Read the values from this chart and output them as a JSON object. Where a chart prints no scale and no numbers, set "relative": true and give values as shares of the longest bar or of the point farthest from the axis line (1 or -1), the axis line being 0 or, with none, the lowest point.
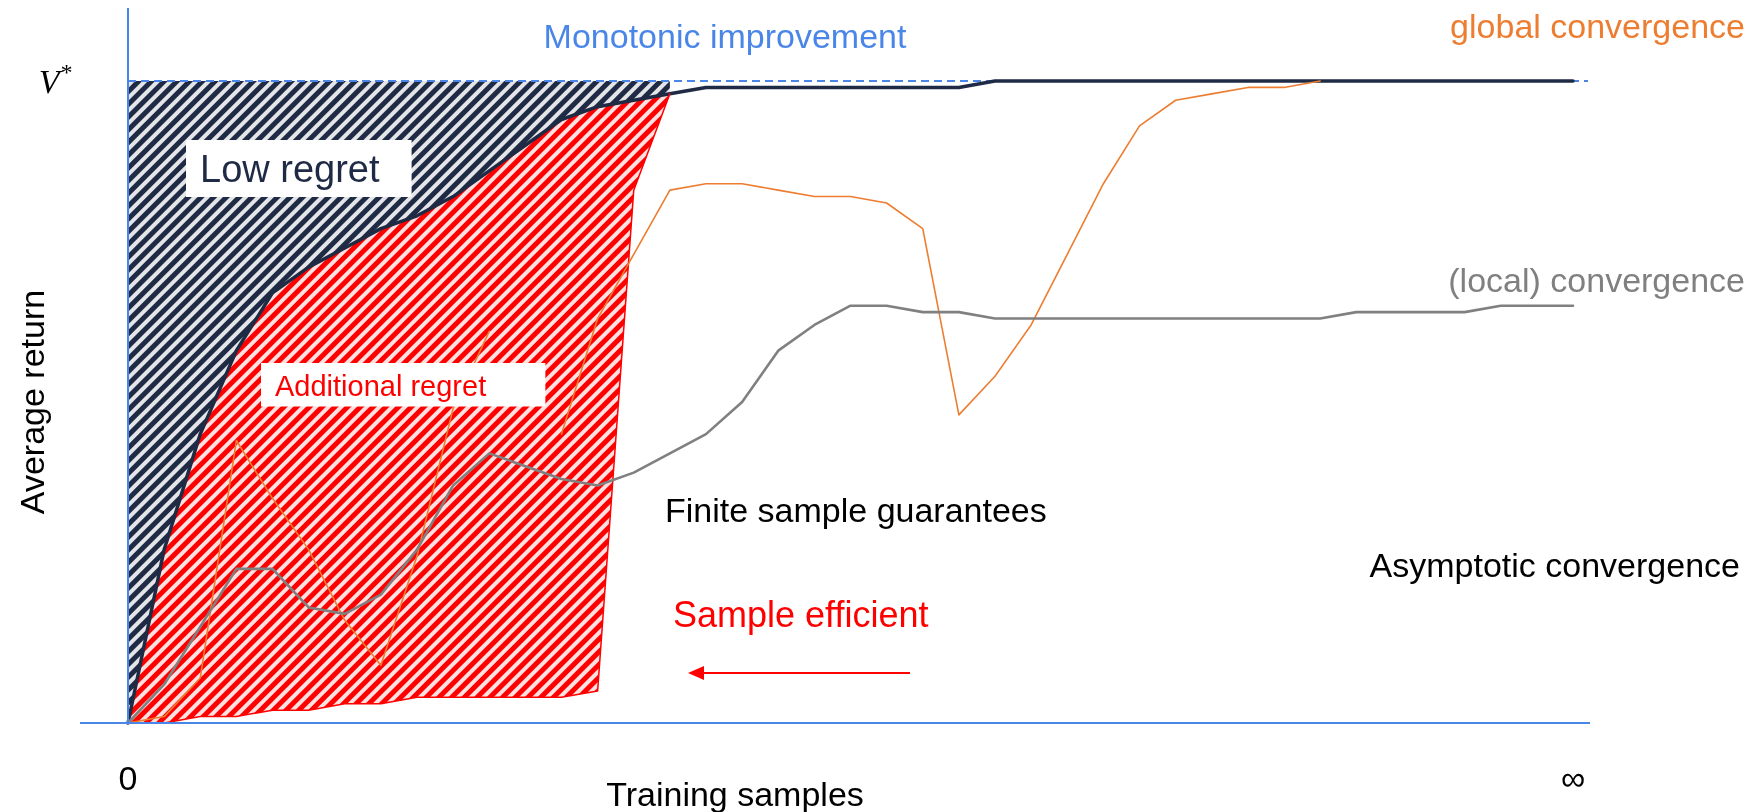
{
  "chart_data": {
    "type": "line",
    "title": "Monotonic improvement",
    "xlabel": "Training samples",
    "ylabel": "Average return",
    "relative": true,
    "categories": [
      "0",
      null,
      null,
      null,
      null,
      null,
      null,
      null,
      null,
      null,
      null,
      null,
      null,
      null,
      null,
      null,
      null,
      null,
      null,
      null,
      null,
      null,
      null,
      null,
      null,
      null,
      null,
      null,
      null,
      null,
      null,
      null,
      null,
      null,
      null,
      null,
      null,
      null,
      null,
      null,
      "∞"
    ],
    "ref_lines": [
      {
        "axis": "y",
        "value": 1,
        "label": "V$^{*}$",
        "color": "#4a86e8",
        "line_style": "dashed"
      }
    ],
    "annotations": [
      "Low regret",
      "Additional regret",
      "Finite sample guarantees",
      "Asymptotic convergence",
      "Sample efficient"
    ],
    "series": [
      {
        "color": "#1f2a44",
        "values": [
          0,
          0.27,
          0.45,
          0.58,
          0.67,
          0.71,
          0.74,
          0.77,
          0.79,
          0.82,
          0.86,
          0.9,
          0.94,
          0.96,
          0.97,
          0.98,
          0.99,
          0.99,
          0.99,
          0.99,
          0.99,
          0.99,
          0.99,
          0.99,
          1,
          1,
          1,
          1,
          1,
          1,
          1,
          1,
          1,
          1,
          1,
          1,
          1,
          1,
          1,
          1,
          1
        ],
        "lower": [
          0,
          0.27,
          0.45,
          0.58,
          0.67,
          0.71,
          0.74,
          0.77,
          0.79,
          0.82,
          0.86,
          0.9,
          0.94,
          0.96,
          0.97,
          0.98,
          null,
          null,
          null,
          null,
          null,
          null,
          null,
          null,
          null,
          null,
          null,
          null,
          null,
          null,
          null,
          null,
          null,
          null,
          null,
          null,
          null,
          null,
          null,
          null,
          null
        ],
        "upper": [
          1,
          1,
          1,
          1,
          1,
          1,
          1,
          1,
          1,
          1,
          1,
          1,
          1,
          1,
          1,
          1,
          null,
          null,
          null,
          null,
          null,
          null,
          null,
          null,
          null,
          null,
          null,
          null,
          null,
          null,
          null,
          null,
          null,
          null,
          null,
          null,
          null,
          null,
          null,
          null,
          null
        ]
      },
      {
        "color": "#ff0000",
        "values": [
          0,
          0,
          0.01,
          0.01,
          0.02,
          0.02,
          0.03,
          0.03,
          0.04,
          0.04,
          0.04,
          0.04,
          0.04,
          0.05,
          0.83,
          0.98,
          null,
          null,
          null,
          null,
          null,
          null,
          null,
          null,
          null,
          null,
          null,
          null,
          null,
          null,
          null,
          null,
          null,
          null,
          null,
          null,
          null,
          null,
          null,
          null,
          null
        ],
        "lower": [
          0,
          0,
          0.01,
          0.01,
          0.02,
          0.02,
          0.03,
          0.03,
          0.04,
          0.04,
          0.04,
          0.04,
          0.04,
          0.05,
          0.83,
          0.98,
          null,
          null,
          null,
          null,
          null,
          null,
          null,
          null,
          null,
          null,
          null,
          null,
          null,
          null,
          null,
          null,
          null,
          null,
          null,
          null,
          null,
          null,
          null,
          null,
          null
        ],
        "upper": [
          0,
          0.27,
          0.45,
          0.58,
          0.67,
          0.71,
          0.74,
          0.77,
          0.79,
          0.82,
          0.86,
          0.9,
          0.94,
          0.96,
          0.97,
          0.98,
          null,
          null,
          null,
          null,
          null,
          null,
          null,
          null,
          null,
          null,
          null,
          null,
          null,
          null,
          null,
          null,
          null,
          null,
          null,
          null,
          null,
          null,
          null,
          null,
          null
        ]
      },
      {
        "name": "global convergence",
        "color": "#ed7d31",
        "values": [
          0,
          0.01,
          0.07,
          0.44,
          0.35,
          0.27,
          0.16,
          0.09,
          0.26,
          0.49,
          0.61,
          null,
          0.45,
          0.63,
          0.73,
          0.83,
          0.84,
          0.84,
          0.83,
          0.82,
          0.82,
          0.81,
          0.77,
          0.48,
          0.54,
          0.62,
          0.73,
          0.84,
          0.93,
          0.97,
          0.98,
          0.99,
          0.99,
          1,
          null,
          null,
          null,
          null,
          null,
          null,
          null
        ]
      },
      {
        "name": "(local) convergence",
        "color": "#808080",
        "values": [
          0,
          0.06,
          0.15,
          0.24,
          0.24,
          0.18,
          0.17,
          0.2,
          0.27,
          0.37,
          0.42,
          0.4,
          0.38,
          0.37,
          0.39,
          0.42,
          0.45,
          0.5,
          0.58,
          0.62,
          0.65,
          0.65,
          0.64,
          0.64,
          0.63,
          0.63,
          0.63,
          0.63,
          0.63,
          0.63,
          0.63,
          0.63,
          0.63,
          0.63,
          0.64,
          0.64,
          0.64,
          0.64,
          0.65,
          0.65,
          0.65
        ]
      }
    ]
  }
}
